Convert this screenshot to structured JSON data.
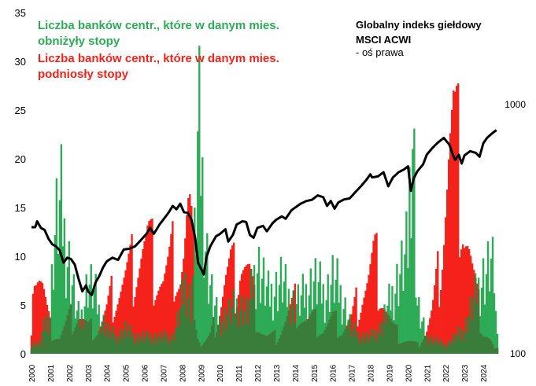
{
  "legend": {
    "cut_label": "Liczba banków centr., które w danym mies. obniżyły stopy",
    "hike_label": "Liczba banków centr., które w danym mies. podniosły stopy"
  },
  "index_label": {
    "title": "Globalny indeks giełdowy MSCI ACWI",
    "subtitle": "- oś prawa"
  },
  "colors": {
    "cuts": "#2eab57",
    "hikes": "#f5221c",
    "overlap": "#3a7d3a",
    "index": "#000000"
  },
  "chart_data": {
    "type": "bar",
    "x_range": [
      2000,
      2024.75
    ],
    "x_ticks": [
      "2000",
      "2001",
      "2002",
      "2003",
      "2004",
      "2005",
      "2006",
      "2007",
      "2008",
      "2009",
      "2010",
      "2011",
      "2012",
      "2013",
      "2014",
      "2015",
      "2016",
      "2017",
      "2018",
      "2019",
      "2020",
      "2021",
      "2022",
      "2023",
      "2024"
    ],
    "y_left": {
      "ylim": [
        0,
        35
      ],
      "ticks": [
        "0",
        "5",
        "10",
        "15",
        "20",
        "25",
        "30",
        "35"
      ]
    },
    "y_right": {
      "scale": "log",
      "ylim": [
        100,
        1000
      ],
      "ticks": [
        "100",
        "1000"
      ]
    },
    "series": [
      {
        "name": "Liczba banków centr., które w danym mies. obniżyły stopy",
        "kind": "bars",
        "color": "#2eab57",
        "points": [
          [
            2000.5,
            2
          ],
          [
            2001.0,
            5
          ],
          [
            2001.2,
            14
          ],
          [
            2001.4,
            17
          ],
          [
            2001.6,
            18
          ],
          [
            2001.8,
            13
          ],
          [
            2002.0,
            11
          ],
          [
            2002.2,
            8
          ],
          [
            2002.4,
            5
          ],
          [
            2002.6,
            4
          ],
          [
            2002.8,
            6
          ],
          [
            2003.0,
            9
          ],
          [
            2003.2,
            8
          ],
          [
            2003.4,
            7
          ],
          [
            2003.6,
            5
          ],
          [
            2003.8,
            4
          ],
          [
            2004.0,
            3
          ],
          [
            2004.5,
            2
          ],
          [
            2005.0,
            3
          ],
          [
            2005.5,
            2
          ],
          [
            2006.0,
            2
          ],
          [
            2006.5,
            2
          ],
          [
            2007.0,
            2
          ],
          [
            2007.5,
            2
          ],
          [
            2007.9,
            5
          ],
          [
            2008.2,
            9
          ],
          [
            2008.5,
            6
          ],
          [
            2008.75,
            17
          ],
          [
            2008.85,
            27
          ],
          [
            2008.95,
            26
          ],
          [
            2009.05,
            22
          ],
          [
            2009.15,
            18
          ],
          [
            2009.25,
            14
          ],
          [
            2009.4,
            10
          ],
          [
            2009.6,
            7
          ],
          [
            2009.8,
            5
          ],
          [
            2010.0,
            4
          ],
          [
            2010.5,
            5
          ],
          [
            2011.0,
            6
          ],
          [
            2011.5,
            5
          ],
          [
            2011.8,
            9
          ],
          [
            2012.0,
            11
          ],
          [
            2012.3,
            9
          ],
          [
            2012.6,
            7
          ],
          [
            2013.0,
            8
          ],
          [
            2013.3,
            9
          ],
          [
            2013.6,
            7
          ],
          [
            2014.0,
            6
          ],
          [
            2014.5,
            7
          ],
          [
            2015.0,
            9
          ],
          [
            2015.3,
            8
          ],
          [
            2015.6,
            7
          ],
          [
            2016.0,
            9
          ],
          [
            2016.3,
            8
          ],
          [
            2016.6,
            6
          ],
          [
            2017.0,
            3
          ],
          [
            2017.5,
            2
          ],
          [
            2018.0,
            2
          ],
          [
            2018.5,
            3
          ],
          [
            2019.0,
            6
          ],
          [
            2019.3,
            8
          ],
          [
            2019.6,
            10
          ],
          [
            2019.8,
            11
          ],
          [
            2020.0,
            13
          ],
          [
            2020.2,
            29
          ],
          [
            2020.3,
            27
          ],
          [
            2020.4,
            12
          ],
          [
            2020.5,
            6
          ],
          [
            2020.7,
            4
          ],
          [
            2021.0,
            2
          ],
          [
            2022.0,
            1
          ],
          [
            2023.0,
            3
          ],
          [
            2023.3,
            5
          ],
          [
            2023.6,
            7
          ],
          [
            2023.9,
            9
          ],
          [
            2024.2,
            10
          ],
          [
            2024.4,
            11
          ],
          [
            2024.6,
            9
          ]
        ]
      },
      {
        "name": "Liczba banków centr., które w danym mies. podniosły stopy",
        "kind": "bars",
        "color": "#f5221c",
        "points": [
          [
            2000.0,
            7
          ],
          [
            2000.1,
            13
          ],
          [
            2000.25,
            11
          ],
          [
            2000.4,
            10
          ],
          [
            2000.6,
            8
          ],
          [
            2000.8,
            5
          ],
          [
            2001.0,
            3
          ],
          [
            2001.5,
            2
          ],
          [
            2002.0,
            4
          ],
          [
            2002.5,
            5
          ],
          [
            2003.0,
            3
          ],
          [
            2003.5,
            3
          ],
          [
            2004.0,
            5
          ],
          [
            2004.3,
            7
          ],
          [
            2004.6,
            8
          ],
          [
            2005.0,
            9
          ],
          [
            2005.3,
            10
          ],
          [
            2005.6,
            12
          ],
          [
            2005.9,
            13
          ],
          [
            2006.2,
            13
          ],
          [
            2006.5,
            11
          ],
          [
            2006.8,
            10
          ],
          [
            2007.0,
            9
          ],
          [
            2007.3,
            10
          ],
          [
            2007.6,
            12
          ],
          [
            2007.9,
            10
          ],
          [
            2008.1,
            12
          ],
          [
            2008.3,
            16
          ],
          [
            2008.45,
            15
          ],
          [
            2008.6,
            10
          ],
          [
            2008.8,
            3
          ],
          [
            2009.0,
            1
          ],
          [
            2009.5,
            2
          ],
          [
            2009.8,
            4
          ],
          [
            2010.0,
            6
          ],
          [
            2010.3,
            9
          ],
          [
            2010.6,
            10
          ],
          [
            2010.9,
            9
          ],
          [
            2011.1,
            12
          ],
          [
            2011.3,
            11
          ],
          [
            2011.6,
            9
          ],
          [
            2011.9,
            5
          ],
          [
            2012.2,
            3
          ],
          [
            2012.5,
            2
          ],
          [
            2013.0,
            2
          ],
          [
            2013.5,
            4
          ],
          [
            2014.0,
            6
          ],
          [
            2014.3,
            5
          ],
          [
            2014.6,
            4
          ],
          [
            2015.0,
            4
          ],
          [
            2015.5,
            3
          ],
          [
            2016.0,
            4
          ],
          [
            2016.5,
            3
          ],
          [
            2017.0,
            4
          ],
          [
            2017.3,
            6
          ],
          [
            2017.6,
            8
          ],
          [
            2017.9,
            9
          ],
          [
            2018.2,
            11
          ],
          [
            2018.4,
            10
          ],
          [
            2018.6,
            8
          ],
          [
            2018.9,
            5
          ],
          [
            2019.2,
            3
          ],
          [
            2019.6,
            2
          ],
          [
            2020.5,
            1
          ],
          [
            2021.0,
            3
          ],
          [
            2021.3,
            5
          ],
          [
            2021.6,
            9
          ],
          [
            2021.8,
            14
          ],
          [
            2022.0,
            20
          ],
          [
            2022.2,
            25
          ],
          [
            2022.4,
            27
          ],
          [
            2022.5,
            25
          ],
          [
            2022.6,
            24
          ],
          [
            2022.75,
            22
          ],
          [
            2022.9,
            20
          ],
          [
            2023.0,
            17
          ],
          [
            2023.2,
            14
          ],
          [
            2023.4,
            10
          ],
          [
            2023.6,
            7
          ],
          [
            2023.8,
            5
          ],
          [
            2024.0,
            3
          ],
          [
            2024.3,
            2
          ],
          [
            2024.5,
            1
          ]
        ]
      },
      {
        "name": "Globalny indeks giełdowy MSCI ACWI",
        "kind": "line",
        "axis": "right",
        "color": "#000000",
        "points": [
          [
            2000.0,
            322
          ],
          [
            2000.2,
            322
          ],
          [
            2000.3,
            340
          ],
          [
            2000.5,
            320
          ],
          [
            2000.7,
            314
          ],
          [
            2000.9,
            290
          ],
          [
            2001.1,
            275
          ],
          [
            2001.3,
            270
          ],
          [
            2001.5,
            260
          ],
          [
            2001.7,
            232
          ],
          [
            2001.9,
            243
          ],
          [
            2002.1,
            240
          ],
          [
            2002.3,
            228
          ],
          [
            2002.5,
            200
          ],
          [
            2002.7,
            178
          ],
          [
            2002.9,
            188
          ],
          [
            2003.0,
            178
          ],
          [
            2003.2,
            172
          ],
          [
            2003.4,
            193
          ],
          [
            2003.6,
            205
          ],
          [
            2003.8,
            222
          ],
          [
            2004.0,
            235
          ],
          [
            2004.3,
            243
          ],
          [
            2004.6,
            238
          ],
          [
            2004.9,
            262
          ],
          [
            2005.2,
            264
          ],
          [
            2005.5,
            270
          ],
          [
            2005.8,
            285
          ],
          [
            2006.1,
            302
          ],
          [
            2006.3,
            320
          ],
          [
            2006.5,
            303
          ],
          [
            2006.8,
            330
          ],
          [
            2007.0,
            345
          ],
          [
            2007.3,
            370
          ],
          [
            2007.5,
            392
          ],
          [
            2007.7,
            380
          ],
          [
            2007.9,
            400
          ],
          [
            2008.1,
            370
          ],
          [
            2008.3,
            368
          ],
          [
            2008.5,
            345
          ],
          [
            2008.7,
            290
          ],
          [
            2008.85,
            232
          ],
          [
            2009.0,
            220
          ],
          [
            2009.15,
            208
          ],
          [
            2009.3,
            245
          ],
          [
            2009.5,
            270
          ],
          [
            2009.8,
            296
          ],
          [
            2010.0,
            302
          ],
          [
            2010.3,
            316
          ],
          [
            2010.45,
            282
          ],
          [
            2010.7,
            300
          ],
          [
            2010.9,
            330
          ],
          [
            2011.2,
            340
          ],
          [
            2011.4,
            338
          ],
          [
            2011.6,
            300
          ],
          [
            2011.8,
            292
          ],
          [
            2012.0,
            320
          ],
          [
            2012.3,
            326
          ],
          [
            2012.5,
            310
          ],
          [
            2012.8,
            334
          ],
          [
            2013.0,
            345
          ],
          [
            2013.3,
            356
          ],
          [
            2013.5,
            348
          ],
          [
            2013.8,
            376
          ],
          [
            2014.0,
            386
          ],
          [
            2014.3,
            400
          ],
          [
            2014.6,
            410
          ],
          [
            2014.9,
            415
          ],
          [
            2015.2,
            432
          ],
          [
            2015.5,
            425
          ],
          [
            2015.7,
            392
          ],
          [
            2015.9,
            410
          ],
          [
            2016.1,
            382
          ],
          [
            2016.3,
            405
          ],
          [
            2016.6,
            416
          ],
          [
            2016.9,
            420
          ],
          [
            2017.2,
            445
          ],
          [
            2017.5,
            470
          ],
          [
            2017.8,
            500
          ],
          [
            2018.0,
            525
          ],
          [
            2018.1,
            510
          ],
          [
            2018.4,
            515
          ],
          [
            2018.7,
            535
          ],
          [
            2018.95,
            470
          ],
          [
            2019.2,
            510
          ],
          [
            2019.5,
            535
          ],
          [
            2019.8,
            550
          ],
          [
            2020.0,
            565
          ],
          [
            2020.15,
            450
          ],
          [
            2020.3,
            505
          ],
          [
            2020.5,
            540
          ],
          [
            2020.8,
            575
          ],
          [
            2021.0,
            630
          ],
          [
            2021.3,
            670
          ],
          [
            2021.6,
            705
          ],
          [
            2021.9,
            735
          ],
          [
            2022.2,
            690
          ],
          [
            2022.4,
            625
          ],
          [
            2022.5,
            600
          ],
          [
            2022.7,
            628
          ],
          [
            2022.85,
            580
          ],
          [
            2023.0,
            625
          ],
          [
            2023.3,
            650
          ],
          [
            2023.6,
            640
          ],
          [
            2023.8,
            618
          ],
          [
            2024.0,
            700
          ],
          [
            2024.2,
            735
          ],
          [
            2024.5,
            770
          ],
          [
            2024.7,
            790
          ]
        ]
      }
    ]
  }
}
